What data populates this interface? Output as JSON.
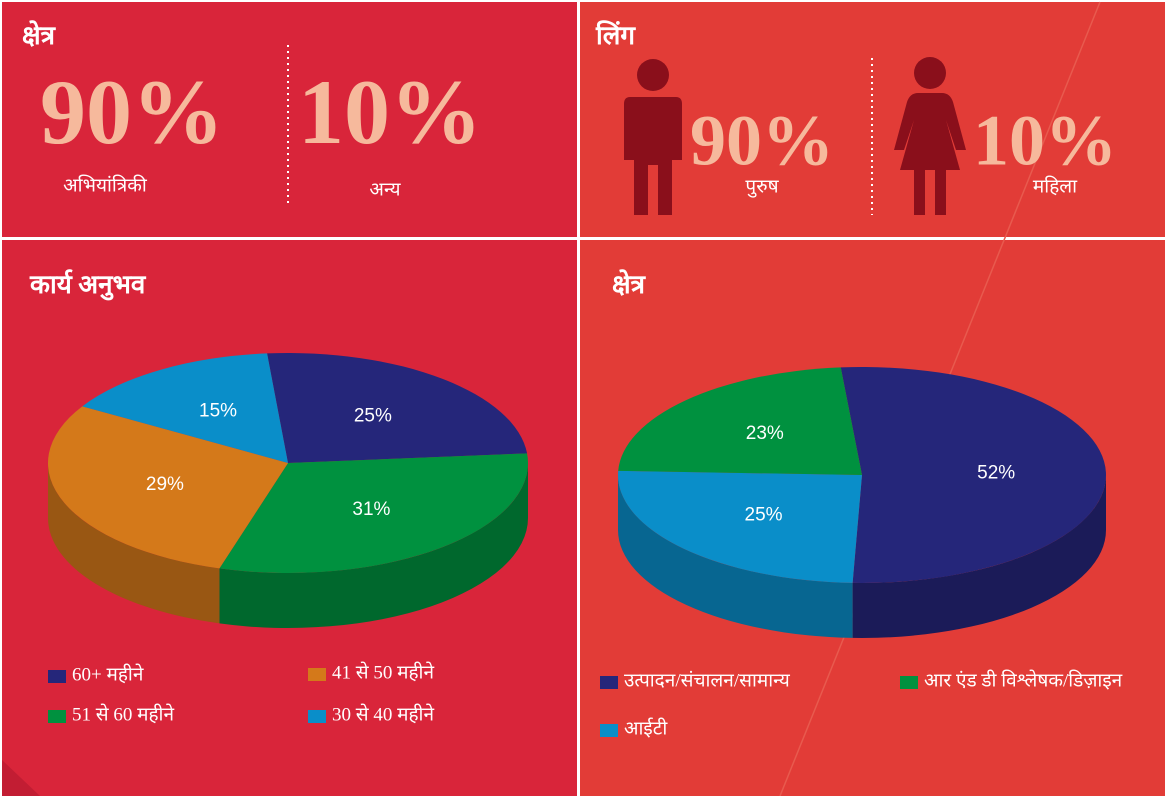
{
  "panels": [
    {
      "title": "क्षेत्र",
      "stats": [
        {
          "value": "90%",
          "label": "अभियांत्रिकी"
        },
        {
          "value": "10%",
          "label": "अन्य"
        }
      ]
    },
    {
      "title": "लिंग",
      "stats": [
        {
          "value": "90%",
          "label": "पुरुष"
        },
        {
          "value": "10%",
          "label": "महिला"
        }
      ]
    }
  ],
  "chart_data": [
    {
      "type": "pie",
      "title": "कार्य अनुभव",
      "categories": [
        "60+ महीने",
        "51 से 60 महीने",
        "41 से 50 महीने",
        "30 से 40 महीने"
      ],
      "values": [
        25,
        31,
        29,
        15
      ],
      "value_labels": [
        "25%",
        "31%",
        "29%",
        "15%"
      ],
      "colors": [
        "#25267a",
        "#00913f",
        "#d4791a",
        "#0a8ec9"
      ]
    },
    {
      "type": "pie",
      "title": "क्षेत्र",
      "categories": [
        "उत्पादन/संचालन/सामान्य",
        "आईटी",
        "आर एंड डी विश्लेषक/डिज़ाइन"
      ],
      "values": [
        52,
        25,
        23
      ],
      "value_labels": [
        "52%",
        "25%",
        "23%"
      ],
      "colors": [
        "#25267a",
        "#0a8ec9",
        "#00913f"
      ]
    }
  ]
}
